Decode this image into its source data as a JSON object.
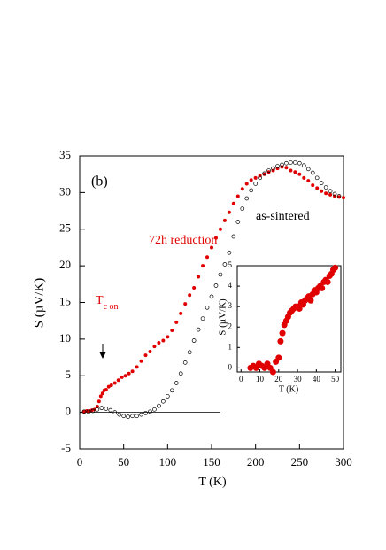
{
  "chart_data": [
    {
      "type": "scatter",
      "x_label": "T (K)",
      "y_label": "S  (µV/K)",
      "annotations": {
        "panel": "(b)",
        "tc": {
          "text": "T",
          "subscript": "c on"
        }
      },
      "xlim": [
        0,
        300
      ],
      "ylim": [
        -5,
        35
      ],
      "xticks": [
        0,
        50,
        100,
        150,
        200,
        250,
        300
      ],
      "yticks": [
        -5,
        0,
        5,
        10,
        15,
        20,
        25,
        30,
        35
      ],
      "series": [
        {
          "name": "72h reduction",
          "color": "#e00000",
          "marker": "filled",
          "x": [
            5,
            8,
            11,
            14,
            17,
            20,
            22,
            24,
            26,
            28,
            30,
            33,
            36,
            40,
            44,
            48,
            52,
            56,
            60,
            65,
            70,
            75,
            80,
            85,
            90,
            95,
            100,
            105,
            110,
            115,
            120,
            125,
            130,
            135,
            140,
            145,
            150,
            155,
            160,
            165,
            170,
            175,
            180,
            185,
            190,
            195,
            200,
            205,
            210,
            215,
            220,
            225,
            230,
            235,
            240,
            245,
            250,
            255,
            260,
            265,
            270,
            275,
            280,
            285,
            290,
            295,
            300
          ],
          "values": [
            0.1,
            0.2,
            0.2,
            0.3,
            0.4,
            0.8,
            1.5,
            2.2,
            2.6,
            3.0,
            3.1,
            3.5,
            3.7,
            4.0,
            4.4,
            4.8,
            5.0,
            5.3,
            5.6,
            6.2,
            7.0,
            7.8,
            8.3,
            9.0,
            9.5,
            9.8,
            10.3,
            11.2,
            12.3,
            13.5,
            14.8,
            16.0,
            17.0,
            18.5,
            20.0,
            21.2,
            22.5,
            23.8,
            25.0,
            26.2,
            27.3,
            28.5,
            29.5,
            30.5,
            31.2,
            31.7,
            32.0,
            32.3,
            32.5,
            32.8,
            33.0,
            33.3,
            33.5,
            33.4,
            33.0,
            32.8,
            32.5,
            32.0,
            31.6,
            31.0,
            30.6,
            30.2,
            29.9,
            29.7,
            29.5,
            29.4,
            29.3
          ]
        },
        {
          "name": "as-sintered",
          "color": "#000000",
          "marker": "open",
          "x": [
            5,
            10,
            15,
            20,
            25,
            30,
            35,
            40,
            45,
            50,
            55,
            60,
            65,
            70,
            75,
            80,
            85,
            90,
            95,
            100,
            105,
            110,
            115,
            120,
            125,
            130,
            135,
            140,
            145,
            150,
            155,
            160,
            165,
            170,
            175,
            180,
            185,
            190,
            195,
            200,
            205,
            210,
            215,
            220,
            225,
            230,
            235,
            240,
            245,
            250,
            255,
            260,
            265,
            270,
            275,
            280,
            285,
            290,
            295
          ],
          "values": [
            0.1,
            0.1,
            0.2,
            0.4,
            0.6,
            0.5,
            0.3,
            0.0,
            -0.3,
            -0.5,
            -0.6,
            -0.5,
            -0.5,
            -0.3,
            -0.1,
            0.1,
            0.4,
            0.9,
            1.5,
            2.2,
            3.0,
            4.0,
            5.3,
            6.8,
            8.2,
            9.8,
            11.3,
            12.8,
            14.3,
            15.8,
            17.3,
            18.8,
            20.2,
            21.8,
            24.0,
            26.0,
            27.8,
            29.2,
            30.3,
            31.2,
            32.0,
            32.6,
            33.0,
            33.3,
            33.6,
            33.8,
            34.0,
            34.1,
            34.1,
            34.0,
            33.7,
            33.2,
            32.7,
            32.0,
            31.3,
            30.7,
            30.2,
            29.8,
            29.5
          ]
        }
      ]
    },
    {
      "type": "scatter",
      "x_label": "T (K)",
      "y_label": "S  (µV/K)",
      "xlim": [
        -2,
        53
      ],
      "ylim": [
        -0.2,
        5
      ],
      "xticks": [
        0,
        10,
        20,
        30,
        40,
        50
      ],
      "yticks": [
        0,
        1,
        2,
        3,
        4,
        5
      ],
      "series": [
        {
          "color": "#e00000",
          "marker": "filled",
          "x": [
            5,
            6.5,
            8,
            9.5,
            11,
            12.5,
            14,
            15.5,
            17,
            18.5,
            20,
            21,
            22,
            23,
            24,
            25,
            26,
            27,
            28,
            29,
            30,
            31,
            32,
            33,
            34,
            35,
            36,
            37,
            38,
            39,
            40,
            41,
            42,
            43,
            44,
            45,
            46,
            47,
            48,
            49,
            50
          ],
          "values": [
            0.0,
            0.1,
            0.0,
            0.2,
            0.1,
            0.0,
            0.2,
            0.0,
            -0.2,
            0.3,
            0.5,
            1.3,
            1.7,
            2.1,
            2.3,
            2.5,
            2.7,
            2.8,
            2.9,
            3.0,
            3.0,
            2.9,
            3.2,
            3.1,
            3.3,
            3.4,
            3.5,
            3.3,
            3.6,
            3.8,
            3.7,
            3.9,
            4.0,
            3.9,
            4.2,
            4.3,
            4.2,
            4.5,
            4.6,
            4.8,
            4.9
          ]
        }
      ]
    }
  ]
}
